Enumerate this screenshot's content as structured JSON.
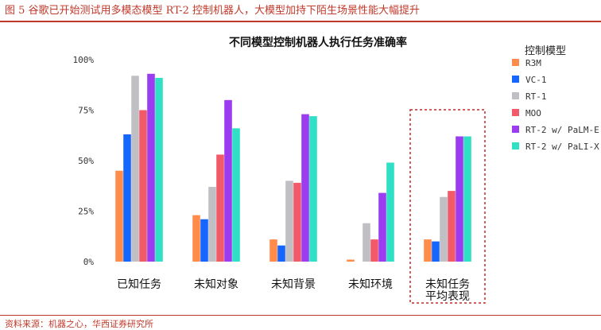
{
  "figure": {
    "title": "图 5   谷歌已开始测试用多模态模型 RT-2 控制机器人，大模型加持下陌生场景性能大幅提升",
    "source": "资料来源：机器之心，华西证券研究所"
  },
  "chart_data": {
    "type": "bar",
    "title": "不同模型控制机器人执行任务准确率",
    "categories": [
      "已知任务",
      "未知对象",
      "未知背景",
      "未知环境",
      "未知任务\n平均表现"
    ],
    "ylim": [
      0,
      100
    ],
    "yticks": [
      "0%",
      "25%",
      "50%",
      "75%",
      "100%"
    ],
    "legend_title": "控制模型",
    "legend_position": "right",
    "grid": false,
    "highlight_category": 4,
    "series": [
      {
        "name": "R3M",
        "color": "#ff8c4a",
        "values": [
          45,
          23,
          11,
          1,
          11
        ]
      },
      {
        "name": "VC-1",
        "color": "#1565ff",
        "values": [
          63,
          21,
          8,
          0,
          10
        ]
      },
      {
        "name": "RT-1",
        "color": "#bfbfc4",
        "values": [
          92,
          37,
          40,
          19,
          32
        ]
      },
      {
        "name": "MOO",
        "color": "#f25a6a",
        "values": [
          75,
          53,
          39,
          11,
          35
        ]
      },
      {
        "name": "RT-2 w/ PaLM-E",
        "color": "#9b3cf0",
        "values": [
          93,
          80,
          73,
          34,
          62
        ]
      },
      {
        "name": "RT-2 w/ PaLI-X",
        "color": "#2fe0c4",
        "values": [
          91,
          66,
          72,
          49,
          62
        ]
      }
    ]
  }
}
